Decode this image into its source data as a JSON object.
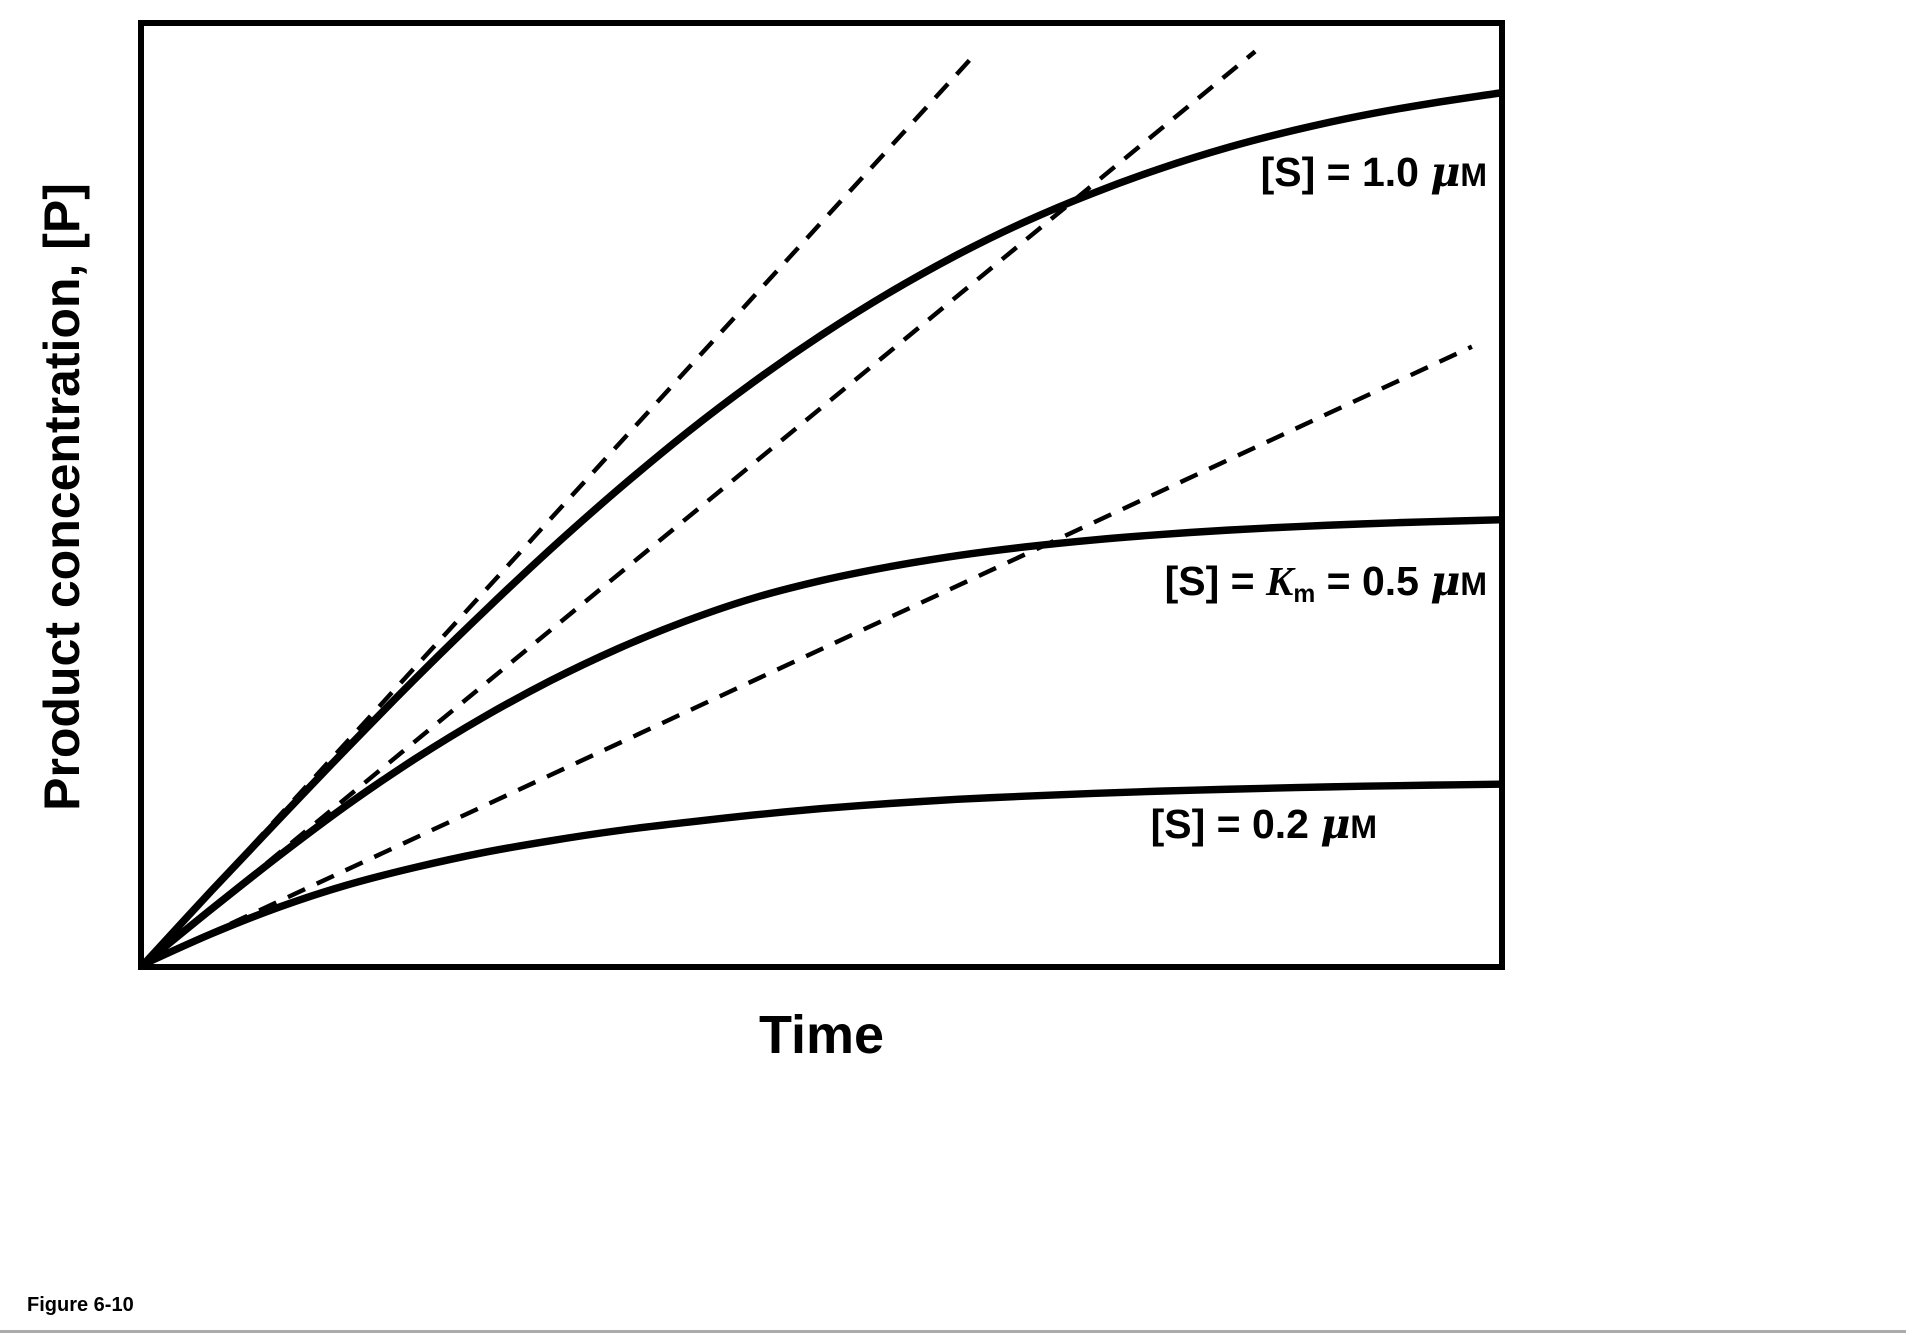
{
  "figure": {
    "caption": "Figure 6-10",
    "background_color": "#ffffff",
    "ink_color": "#000000"
  },
  "axes": {
    "x_title": "Time",
    "y_title": "Product concentration, [P]",
    "has_ticks": false,
    "frame": "box"
  },
  "chart_data": {
    "type": "line",
    "title": "",
    "xlabel": "Time",
    "ylabel": "Product concentration, [P]",
    "xlim": [
      0,
      1
    ],
    "ylim": [
      0,
      1.02
    ],
    "y_units": "μM",
    "grid": false,
    "legend_position": "labels drawn on plot",
    "km_uM": 0.5,
    "series": [
      {
        "label": "[S] = 1.0 μM",
        "S0_uM": 1.0,
        "line_style": "solid",
        "points": [
          [
            0,
            0
          ],
          [
            0.05,
            0.08
          ],
          [
            0.1,
            0.158
          ],
          [
            0.15,
            0.235
          ],
          [
            0.2,
            0.31
          ],
          [
            0.25,
            0.382
          ],
          [
            0.3,
            0.451
          ],
          [
            0.35,
            0.516
          ],
          [
            0.4,
            0.577
          ],
          [
            0.45,
            0.633
          ],
          [
            0.5,
            0.684
          ],
          [
            0.55,
            0.73
          ],
          [
            0.6,
            0.771
          ],
          [
            0.65,
            0.807
          ],
          [
            0.7,
            0.838
          ],
          [
            0.75,
            0.865
          ],
          [
            0.8,
            0.888
          ],
          [
            0.85,
            0.907
          ],
          [
            0.9,
            0.923
          ],
          [
            0.95,
            0.936
          ],
          [
            1,
            0.947
          ]
        ]
      },
      {
        "label": "[S] = Km = 0.5 μM",
        "S0_uM": 0.5,
        "line_style": "solid",
        "points": [
          [
            0,
            0
          ],
          [
            0.05,
            0.06
          ],
          [
            0.1,
            0.118
          ],
          [
            0.15,
            0.173
          ],
          [
            0.2,
            0.223
          ],
          [
            0.25,
            0.268
          ],
          [
            0.3,
            0.308
          ],
          [
            0.35,
            0.343
          ],
          [
            0.4,
            0.373
          ],
          [
            0.45,
            0.398
          ],
          [
            0.5,
            0.417
          ],
          [
            0.55,
            0.432
          ],
          [
            0.6,
            0.444
          ],
          [
            0.65,
            0.4535
          ],
          [
            0.7,
            0.461
          ],
          [
            0.75,
            0.467
          ],
          [
            0.8,
            0.4718
          ],
          [
            0.85,
            0.4756
          ],
          [
            0.9,
            0.4786
          ],
          [
            0.95,
            0.481
          ],
          [
            1,
            0.483
          ]
        ]
      },
      {
        "label": "[S] = 0.2 μM",
        "S0_uM": 0.2,
        "line_style": "solid",
        "points": [
          [
            0,
            0
          ],
          [
            0.05,
            0.033
          ],
          [
            0.1,
            0.062
          ],
          [
            0.15,
            0.086
          ],
          [
            0.2,
            0.105
          ],
          [
            0.25,
            0.121
          ],
          [
            0.3,
            0.134
          ],
          [
            0.35,
            0.145
          ],
          [
            0.4,
            0.154
          ],
          [
            0.45,
            0.162
          ],
          [
            0.5,
            0.169
          ],
          [
            0.55,
            0.1745
          ],
          [
            0.6,
            0.179
          ],
          [
            0.65,
            0.1825
          ],
          [
            0.7,
            0.1855
          ],
          [
            0.75,
            0.188
          ],
          [
            0.8,
            0.19
          ],
          [
            0.85,
            0.1918
          ],
          [
            0.9,
            0.1933
          ],
          [
            0.95,
            0.1945
          ],
          [
            1,
            0.1955
          ]
        ]
      }
    ],
    "initial_rate_tangents": [
      {
        "for_label": "[S] = 1.0 μM",
        "slope": 1.613,
        "end_x": 0.61,
        "line_style": "dashed"
      },
      {
        "for_label": "[S] = Km = 0.5 μM",
        "slope": 1.21,
        "end_x": 0.82,
        "line_style": "dashed"
      },
      {
        "for_label": "[S] = 0.2 μM",
        "slope": 0.685,
        "end_x": 0.98,
        "line_style": "dashed"
      }
    ],
    "labels": {
      "s_high": {
        "pre": "[S] = 1.0 ",
        "mu": "μ",
        "m": "M"
      },
      "s_mid": {
        "pre": "[S] = ",
        "k": "K",
        "k_sub": "m",
        "mid": " = 0.5 ",
        "mu": "μ",
        "m": "M"
      },
      "s_low": {
        "pre": "[S] = 0.2 ",
        "mu": "μ",
        "m": "M"
      }
    }
  }
}
